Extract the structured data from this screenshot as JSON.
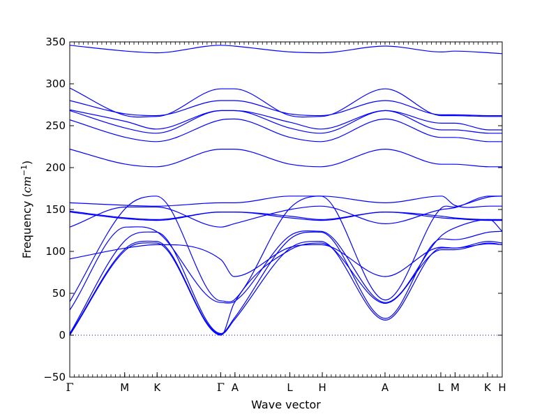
{
  "chart_data": {
    "type": "line",
    "title": "",
    "xlabel": "Wave vector",
    "ylabel_text": "Frequency (",
    "ylabel_unit": "cm",
    "ylabel_exp": "−1",
    "ylabel_close": ")",
    "ylim": [
      -50,
      350
    ],
    "yticks": [
      -50,
      0,
      50,
      100,
      150,
      200,
      250,
      300,
      350
    ],
    "xlim": [
      0,
      1
    ],
    "kpoints": [
      {
        "label": "Γ",
        "x": 0.0
      },
      {
        "label": "M",
        "x": 0.127
      },
      {
        "label": "K",
        "x": 0.202
      },
      {
        "label": "Γ",
        "x": 0.349
      },
      {
        "label": "A",
        "x": 0.382
      },
      {
        "label": "L",
        "x": 0.509
      },
      {
        "label": "H",
        "x": 0.584
      },
      {
        "label": "A",
        "x": 0.729
      },
      {
        "label": "L",
        "x": 0.858
      },
      {
        "label": "M",
        "x": 0.891
      },
      {
        "label": "K",
        "x": 0.966
      },
      {
        "label": "H",
        "x": 1.0
      }
    ],
    "zero_line": {
      "y": 0,
      "style": "dotted"
    },
    "line_color": "#0000ff",
    "grid": false,
    "series": [
      {
        "x": [
          0,
          0.13,
          0.2,
          0.35,
          0.38,
          0.51,
          0.58,
          0.73,
          0.86,
          0.89,
          0.97,
          1.0
        ],
        "y": [
          346,
          339,
          337,
          346,
          345,
          338,
          337,
          345,
          338,
          339,
          337,
          336
        ]
      },
      {
        "x": [
          0,
          0.13,
          0.2,
          0.35,
          0.38,
          0.51,
          0.58,
          0.73,
          0.86,
          0.89,
          0.97,
          1.0
        ],
        "y": [
          295,
          262,
          261,
          294,
          294,
          262,
          261,
          294,
          262,
          262,
          261,
          261
        ]
      },
      {
        "x": [
          0,
          0.13,
          0.2,
          0.35,
          0.38,
          0.51,
          0.58,
          0.73,
          0.86,
          0.89,
          0.97,
          1.0
        ],
        "y": [
          280,
          264,
          262,
          280,
          280,
          264,
          262,
          280,
          263,
          263,
          262,
          262
        ]
      },
      {
        "x": [
          0,
          0.13,
          0.2,
          0.35,
          0.38,
          0.51,
          0.58,
          0.73,
          0.86,
          0.89,
          0.97,
          1.0
        ],
        "y": [
          269,
          255,
          246,
          268,
          268,
          254,
          246,
          268,
          253,
          253,
          245,
          245
        ]
      },
      {
        "x": [
          0,
          0.13,
          0.2,
          0.35,
          0.38,
          0.51,
          0.58,
          0.73,
          0.86,
          0.89,
          0.97,
          1.0
        ],
        "y": [
          268,
          247,
          241,
          268,
          268,
          247,
          241,
          268,
          245,
          245,
          241,
          241
        ]
      },
      {
        "x": [
          0,
          0.13,
          0.2,
          0.35,
          0.38,
          0.51,
          0.58,
          0.73,
          0.86,
          0.89,
          0.97,
          1.0
        ],
        "y": [
          257,
          236,
          231,
          257,
          258,
          236,
          231,
          258,
          236,
          236,
          231,
          231
        ]
      },
      {
        "x": [
          0,
          0.13,
          0.2,
          0.35,
          0.38,
          0.51,
          0.58,
          0.73,
          0.86,
          0.89,
          0.97,
          1.0
        ],
        "y": [
          222,
          204,
          201,
          222,
          222,
          204,
          201,
          222,
          204,
          204,
          201,
          201
        ]
      },
      {
        "x": [
          0,
          0.13,
          0.2,
          0.35,
          0.38,
          0.51,
          0.58,
          0.73,
          0.86,
          0.89,
          0.97,
          1.0
        ],
        "y": [
          158,
          155,
          154,
          158,
          158,
          166,
          166,
          158,
          166,
          155,
          154,
          154
        ]
      },
      {
        "x": [
          0,
          0.13,
          0.2,
          0.35,
          0.38,
          0.51,
          0.58,
          0.73,
          0.86,
          0.89,
          0.97,
          1.0
        ],
        "y": [
          148,
          140,
          138,
          147,
          147,
          142,
          138,
          147,
          142,
          140,
          138,
          138
        ]
      },
      {
        "x": [
          0,
          0.13,
          0.2,
          0.35,
          0.38,
          0.51,
          0.58,
          0.73,
          0.86,
          0.89,
          0.97,
          1.0
        ],
        "y": [
          147,
          139,
          137,
          147,
          147,
          140,
          137,
          147,
          140,
          139,
          137,
          137
        ]
      },
      {
        "x": [
          0,
          0.13,
          0.2,
          0.35,
          0.38,
          0.51,
          0.58,
          0.73,
          0.86,
          0.89,
          0.97,
          1.0
        ],
        "y": [
          129,
          153,
          153,
          129,
          133,
          150,
          154,
          133,
          150,
          152,
          166,
          166
        ]
      },
      {
        "x": [
          0,
          0.13,
          0.2,
          0.35,
          0.38,
          0.51,
          0.58,
          0.73,
          0.86,
          0.89,
          0.97,
          1.0
        ],
        "y": [
          40,
          152,
          166,
          41,
          42,
          152,
          166,
          42,
          152,
          153,
          165,
          166
        ]
      },
      {
        "x": [
          0,
          0.13,
          0.2,
          0.35,
          0.38,
          0.51,
          0.58,
          0.73,
          0.86,
          0.89,
          0.97,
          1.0
        ],
        "y": [
          30,
          129,
          124,
          39,
          40,
          119,
          124,
          39,
          119,
          128,
          138,
          124
        ]
      },
      {
        "x": [
          0,
          0.13,
          0.2,
          0.35,
          0.38,
          0.51,
          0.58,
          0.73,
          0.86,
          0.89,
          0.97,
          1.0
        ],
        "y": [
          91,
          104,
          108,
          90,
          70,
          105,
          108,
          70,
          105,
          104,
          109,
          108
        ]
      },
      {
        "x": [
          0,
          0.13,
          0.2,
          0.35,
          0.38,
          0.51,
          0.58,
          0.73,
          0.86,
          0.89,
          0.97,
          1.0
        ],
        "y": [
          2,
          114,
          123,
          2,
          20,
          115,
          123,
          20,
          115,
          114,
          123,
          124
        ]
      },
      {
        "x": [
          0,
          0.13,
          0.2,
          0.35,
          0.38,
          0.51,
          0.58,
          0.73,
          0.86,
          0.89,
          0.97,
          1.0
        ],
        "y": [
          1,
          104,
          112,
          1,
          18,
          104,
          112,
          18,
          104,
          104,
          112,
          110
        ]
      },
      {
        "x": [
          0,
          0.13,
          0.2,
          0.35,
          0.38,
          0.51,
          0.58,
          0.73,
          0.86,
          0.89,
          0.97,
          1.0
        ],
        "y": [
          0,
          102,
          110,
          0,
          38,
          102,
          110,
          38,
          102,
          102,
          110,
          108
        ]
      }
    ]
  }
}
